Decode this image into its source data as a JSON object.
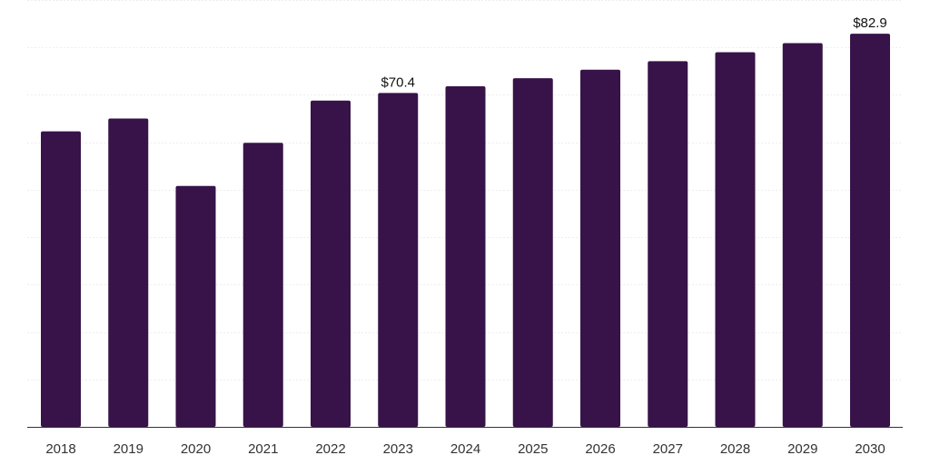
{
  "chart_data": {
    "type": "bar",
    "categories": [
      "2018",
      "2019",
      "2020",
      "2021",
      "2022",
      "2023",
      "2024",
      "2025",
      "2026",
      "2027",
      "2028",
      "2029",
      "2030"
    ],
    "values": [
      62.3,
      65.0,
      50.8,
      59.9,
      68.8,
      70.4,
      71.8,
      73.5,
      75.3,
      77.1,
      79.0,
      80.9,
      82.9
    ],
    "data_labels": [
      {
        "index": 5,
        "text": "$70.4"
      },
      {
        "index": 12,
        "text": "$82.9"
      }
    ],
    "title": "",
    "xlabel": "",
    "ylabel": "",
    "ylim": [
      0,
      90
    ],
    "y_gridlines": [
      0,
      10,
      20,
      30,
      40,
      50,
      60,
      70,
      80,
      90
    ],
    "grid": true,
    "legend": "none",
    "bar_color": "#371349"
  }
}
